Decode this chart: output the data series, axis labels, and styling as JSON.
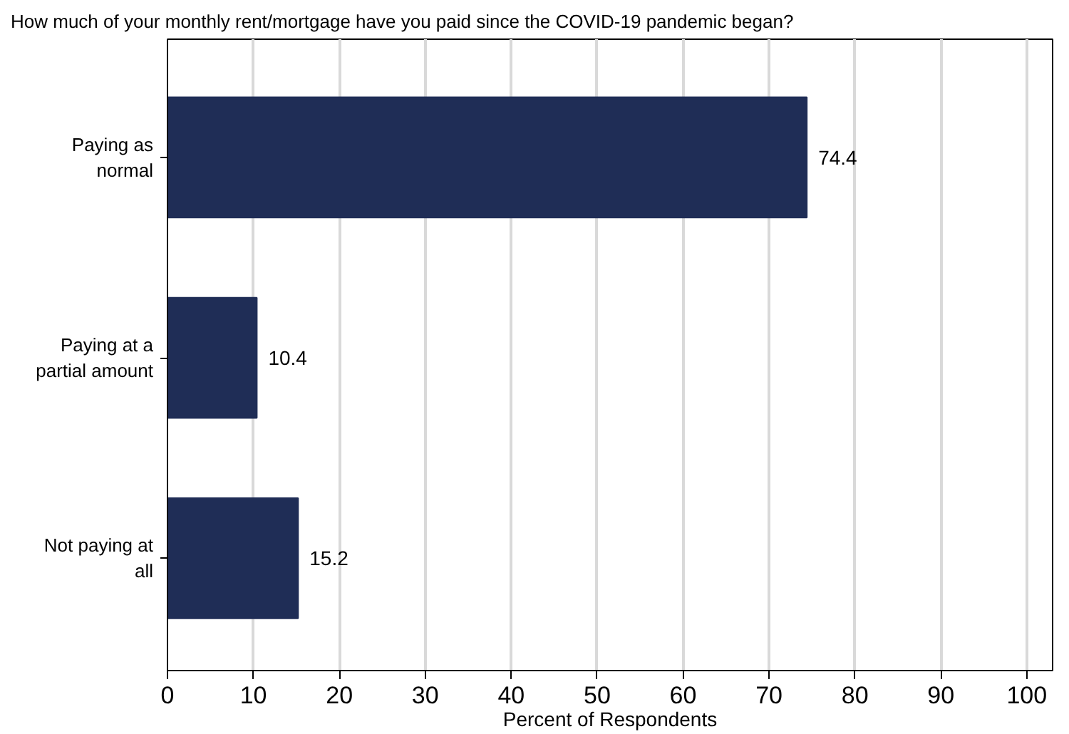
{
  "chart_data": {
    "type": "bar",
    "orientation": "horizontal",
    "title": "How much of your monthly rent/mortgage have you paid since the COVID-19 pandemic began?",
    "xlabel": "Percent of Respondents",
    "categories": [
      "Paying as\nnormal",
      "Paying at a\npartial amount",
      "Not paying at\nall"
    ],
    "values": [
      74.4,
      10.4,
      15.2
    ],
    "color": "#1f2d56",
    "xlim": [
      0,
      103
    ],
    "xticks": [
      0,
      10,
      20,
      30,
      40,
      50,
      60,
      70,
      80,
      90,
      100
    ],
    "grid": "x",
    "data_labels": true
  }
}
